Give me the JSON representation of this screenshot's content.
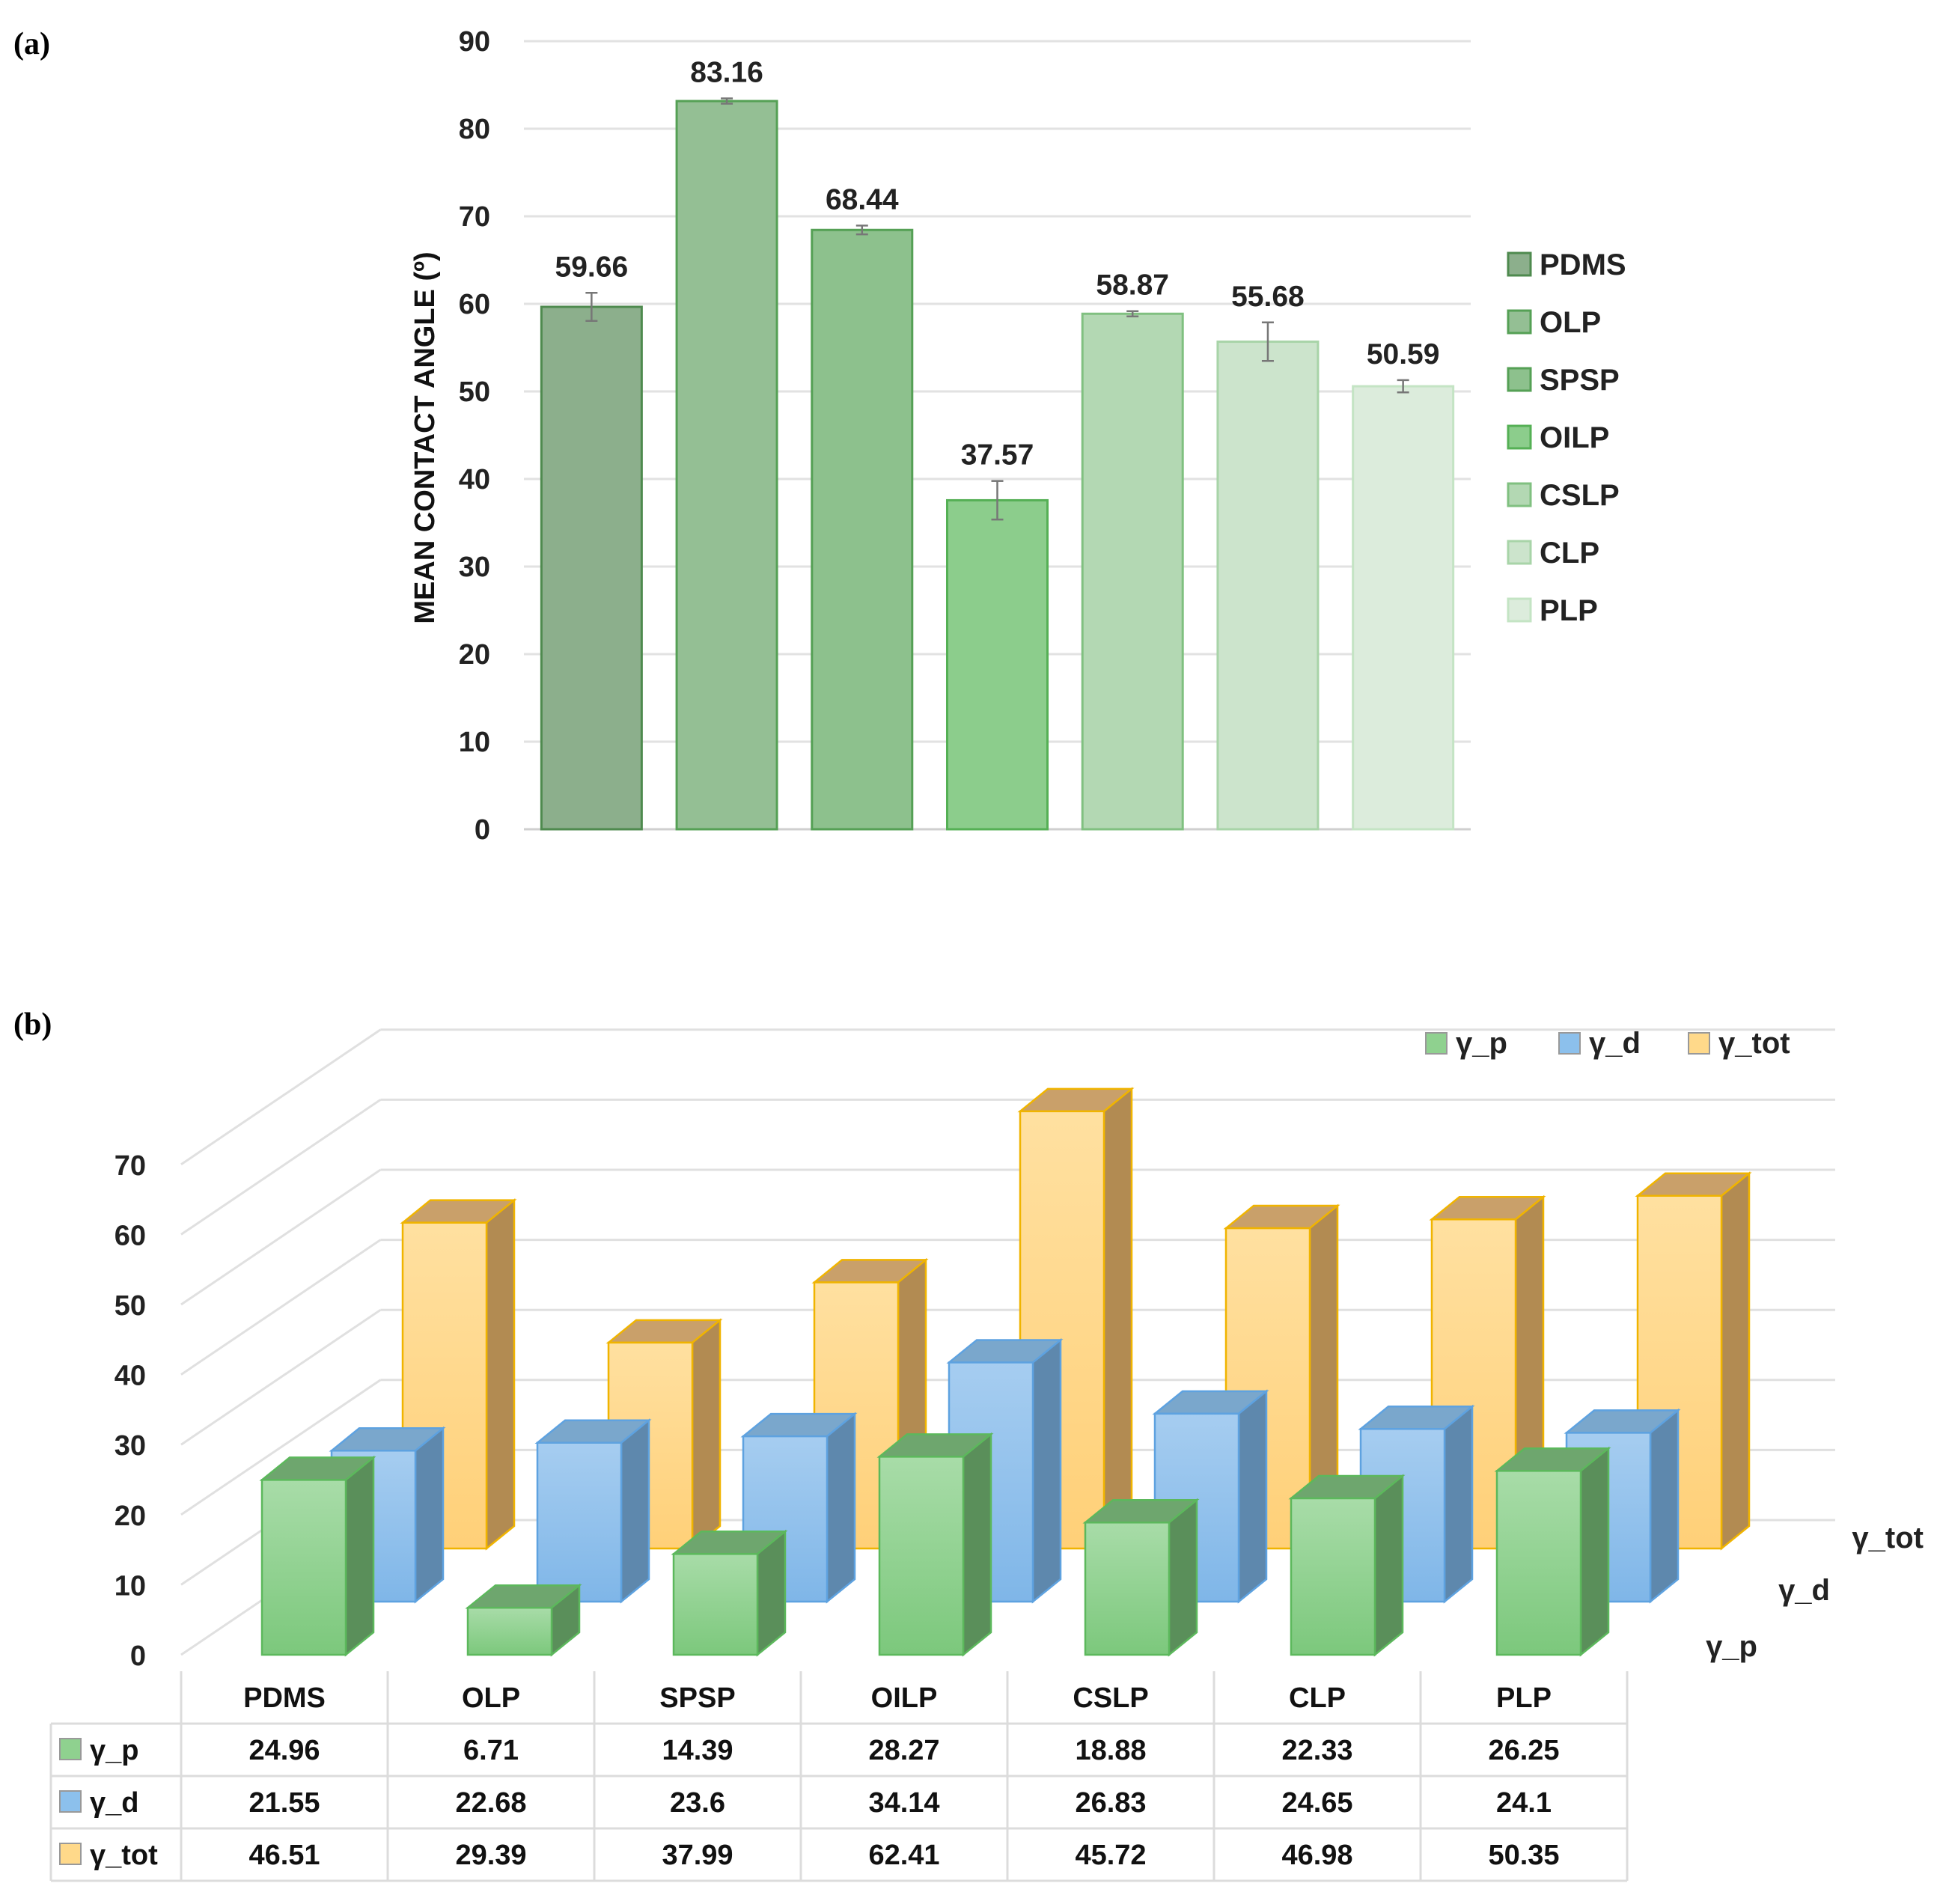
{
  "panel_a_label": "(a)",
  "panel_b_label": "(b)",
  "chart_data": [
    {
      "type": "bar",
      "ylabel": "MEAN CONTACT ANGLE (º)",
      "ylim": [
        0,
        90
      ],
      "yticks": [
        0,
        10,
        20,
        30,
        40,
        50,
        60,
        70,
        80,
        90
      ],
      "grid": true,
      "legend_position": "right",
      "categories": [
        "PDMS",
        "OLP",
        "SPSP",
        "OILP",
        "CSLP",
        "CLP",
        "PLP"
      ],
      "values": [
        59.66,
        83.16,
        68.44,
        37.57,
        58.87,
        55.68,
        50.59
      ],
      "data_labels": [
        "59.66",
        "83.16",
        "68.44",
        "37.57",
        "58.87",
        "55.68",
        "50.59"
      ],
      "errors": [
        1.6,
        0.3,
        0.5,
        2.2,
        0.3,
        2.2,
        0.7
      ],
      "colors": [
        "#8caf8c",
        "#94bf94",
        "#8dc18d",
        "#8ccd8c",
        "#b3d8b3",
        "#cce4cc",
        "#dcecdc"
      ],
      "border_colors": [
        "#4e8a4e",
        "#55a055",
        "#55a055",
        "#55b055",
        "#80c080",
        "#a8d4a8",
        "#c4e4c4"
      ]
    },
    {
      "type": "bar",
      "subtype": "3d-clustered",
      "ylim": [
        0,
        70
      ],
      "yticks": [
        0,
        10,
        20,
        30,
        40,
        50,
        60,
        70
      ],
      "grid": true,
      "legend_position": "top-right",
      "categories": [
        "PDMS",
        "OLP",
        "SPSP",
        "OILP",
        "CSLP",
        "CLP",
        "PLP"
      ],
      "series": [
        {
          "name": "γ_p",
          "color": "#8fd18f",
          "values": [
            24.96,
            6.71,
            14.39,
            28.27,
            18.88,
            22.33,
            26.25
          ],
          "labels": [
            "24.96",
            "6.71",
            "14.39",
            "28.27",
            "18.88",
            "22.33",
            "26.25"
          ]
        },
        {
          "name": "γ_d",
          "color": "#8cc0ec",
          "values": [
            21.55,
            22.68,
            23.6,
            34.14,
            26.83,
            24.65,
            24.1
          ],
          "labels": [
            "21.55",
            "22.68",
            "23.6",
            "34.14",
            "26.83",
            "24.65",
            "24.1"
          ]
        },
        {
          "name": "γ_tot",
          "color": "#ffd98a",
          "values": [
            46.51,
            29.39,
            37.99,
            62.41,
            45.72,
            46.98,
            50.35
          ],
          "labels": [
            "46.51",
            "29.39",
            "37.99",
            "62.41",
            "45.72",
            "46.98",
            "50.35"
          ]
        }
      ]
    }
  ]
}
